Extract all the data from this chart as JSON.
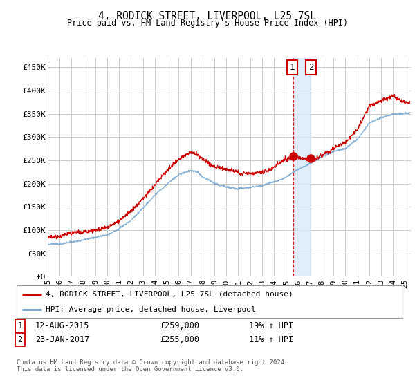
{
  "title": "4, RODICK STREET, LIVERPOOL, L25 7SL",
  "subtitle": "Price paid vs. HM Land Registry's House Price Index (HPI)",
  "ylabel_ticks": [
    "£0",
    "£50K",
    "£100K",
    "£150K",
    "£200K",
    "£250K",
    "£300K",
    "£350K",
    "£400K",
    "£450K"
  ],
  "ytick_vals": [
    0,
    50000,
    100000,
    150000,
    200000,
    250000,
    300000,
    350000,
    400000,
    450000
  ],
  "ylim": [
    0,
    470000
  ],
  "xlim_start": 1995.0,
  "xlim_end": 2025.5,
  "transaction1_date": 2015.62,
  "transaction1_price": 259000,
  "transaction2_date": 2017.07,
  "transaction2_price": 255000,
  "hpi_color": "#7aaad4",
  "price_color": "#cc0000",
  "grid_color": "#cccccc",
  "bg_color": "#ffffff",
  "legend_entry1": "4, RODICK STREET, LIVERPOOL, L25 7SL (detached house)",
  "legend_entry2": "HPI: Average price, detached house, Liverpool",
  "footer": "Contains HM Land Registry data © Crown copyright and database right 2024.\nThis data is licensed under the Open Government Licence v3.0.",
  "xtick_years": [
    1995,
    1996,
    1997,
    1998,
    1999,
    2000,
    2001,
    2002,
    2003,
    2004,
    2005,
    2006,
    2007,
    2008,
    2009,
    2010,
    2011,
    2012,
    2013,
    2014,
    2015,
    2016,
    2017,
    2018,
    2019,
    2020,
    2021,
    2022,
    2023,
    2024,
    2025
  ],
  "hpi_anchors_x": [
    1995,
    1996,
    1997,
    1998,
    1999,
    2000,
    2001,
    2002,
    2003,
    2004,
    2005,
    2006,
    2007,
    2007.5,
    2008,
    2009,
    2010,
    2011,
    2012,
    2013,
    2014,
    2015,
    2016,
    2017,
    2018,
    2019,
    2020,
    2021,
    2022,
    2023,
    2024,
    2025
  ],
  "hpi_anchors_y": [
    70000,
    72000,
    76000,
    82000,
    88000,
    96000,
    110000,
    130000,
    155000,
    180000,
    205000,
    225000,
    235000,
    232000,
    220000,
    205000,
    198000,
    196000,
    197000,
    200000,
    207000,
    217000,
    230000,
    243000,
    255000,
    268000,
    275000,
    295000,
    330000,
    340000,
    348000,
    352000
  ],
  "pp_anchors_x": [
    1995,
    1996,
    1997,
    1998,
    1999,
    2000,
    2001,
    2002,
    2003,
    2004,
    2005,
    2006,
    2007,
    2007.5,
    2008,
    2009,
    2010,
    2011,
    2012,
    2013,
    2014,
    2015,
    2015.62,
    2016,
    2017,
    2017.07,
    2018,
    2019,
    2020,
    2021,
    2022,
    2023,
    2024,
    2025
  ],
  "pp_anchors_y": [
    85000,
    87000,
    92000,
    98000,
    103000,
    112000,
    128000,
    150000,
    175000,
    200000,
    230000,
    255000,
    270000,
    267000,
    255000,
    240000,
    235000,
    230000,
    228000,
    232000,
    242000,
    257000,
    259000,
    262000,
    258000,
    255000,
    265000,
    278000,
    292000,
    318000,
    368000,
    378000,
    390000,
    375000
  ],
  "noise_seed": 12,
  "noise_amplitude_hpi": 4000,
  "noise_amplitude_pp": 6000
}
